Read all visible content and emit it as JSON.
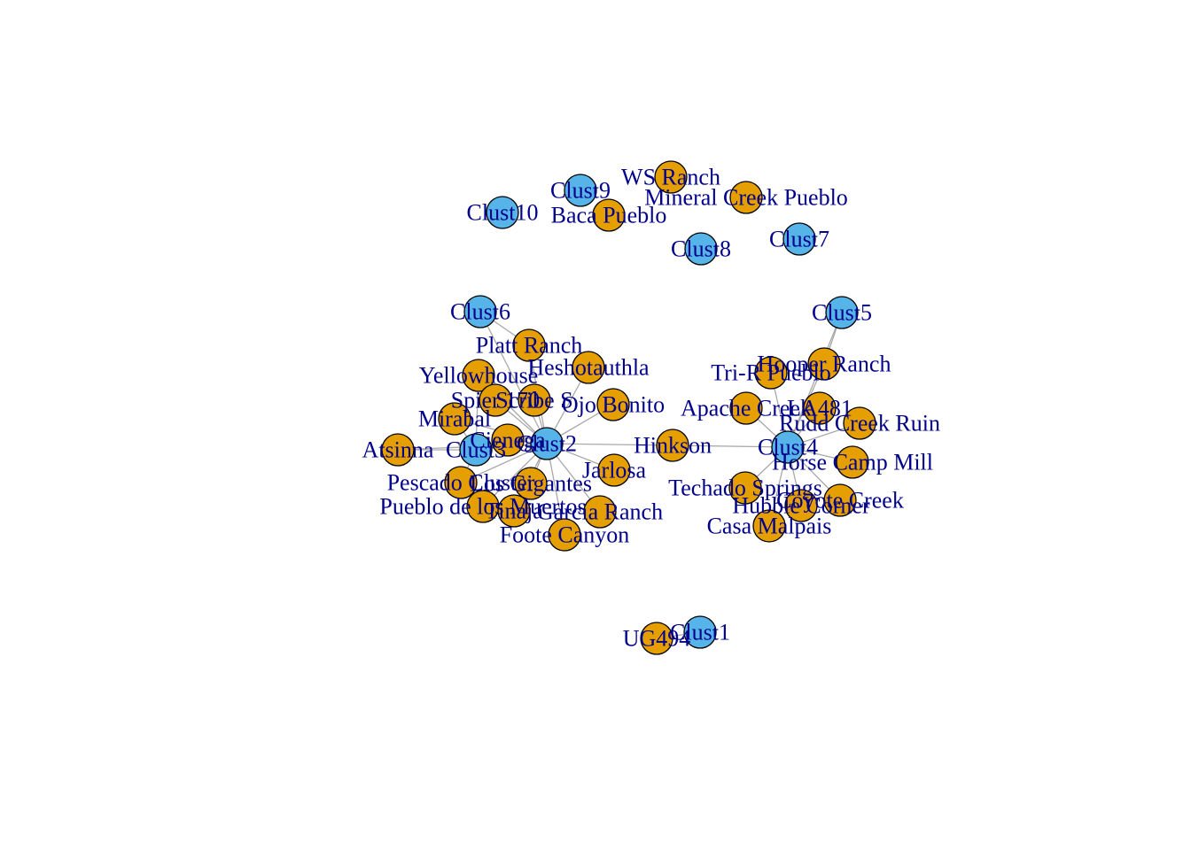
{
  "colors": {
    "cluster": "#56b4e9",
    "site": "#e69f00",
    "edge": "#a9a9a9",
    "label": "#00008b"
  },
  "nodes": [
    {
      "id": "wsranch",
      "label": "WS Ranch",
      "type": "site"
    },
    {
      "id": "clust9",
      "label": "Clust9",
      "type": "cluster"
    },
    {
      "id": "mineral",
      "label": "Mineral Creek Pueblo",
      "type": "site"
    },
    {
      "id": "clust10",
      "label": "Clust10",
      "type": "cluster"
    },
    {
      "id": "baca",
      "label": "Baca Pueblo",
      "type": "site"
    },
    {
      "id": "clust8",
      "label": "Clust8",
      "type": "cluster"
    },
    {
      "id": "clust7",
      "label": "Clust7",
      "type": "cluster"
    },
    {
      "id": "clust6",
      "label": "Clust6",
      "type": "cluster"
    },
    {
      "id": "clust5",
      "label": "Clust5",
      "type": "cluster"
    },
    {
      "id": "platt",
      "label": "Platt Ranch",
      "type": "site"
    },
    {
      "id": "heshot",
      "label": "Heshotauthla",
      "type": "site"
    },
    {
      "id": "hooper",
      "label": "Hooper Ranch",
      "type": "site"
    },
    {
      "id": "trir",
      "label": "Tri-R Pueblo",
      "type": "site"
    },
    {
      "id": "yellowhouse",
      "label": "Yellowhouse",
      "type": "site"
    },
    {
      "id": "spier",
      "label": "Spier 170",
      "type": "site"
    },
    {
      "id": "scribe",
      "label": "Scribe S",
      "type": "site"
    },
    {
      "id": "ojo",
      "label": "Ojo Bonito",
      "type": "site"
    },
    {
      "id": "apache",
      "label": "Apache Creek",
      "type": "site"
    },
    {
      "id": "la481",
      "label": "LA481",
      "type": "site"
    },
    {
      "id": "mirabal",
      "label": "Mirabal",
      "type": "site"
    },
    {
      "id": "rudd",
      "label": "Rudd Creek Ruin",
      "type": "site"
    },
    {
      "id": "cienega",
      "label": "Cienega",
      "type": "site"
    },
    {
      "id": "clust3",
      "label": "Clust3",
      "type": "cluster"
    },
    {
      "id": "clust2",
      "label": "Clust2",
      "type": "cluster"
    },
    {
      "id": "atsinna",
      "label": "Atsinna",
      "type": "site"
    },
    {
      "id": "hinkson",
      "label": "Hinkson",
      "type": "site"
    },
    {
      "id": "clust4",
      "label": "Clust4",
      "type": "cluster"
    },
    {
      "id": "horsecamp",
      "label": "Horse Camp Mill",
      "type": "site"
    },
    {
      "id": "jarlosa",
      "label": "Jarlosa",
      "type": "site"
    },
    {
      "id": "pescado",
      "label": "Pescado Cluster",
      "type": "site"
    },
    {
      "id": "losgig",
      "label": "Los Gigantes",
      "type": "site"
    },
    {
      "id": "techado",
      "label": "Techado Springs",
      "type": "site"
    },
    {
      "id": "coyote",
      "label": "Coyote Creek",
      "type": "site"
    },
    {
      "id": "hubbell",
      "label": "Hubble Corner",
      "type": "site"
    },
    {
      "id": "pueblomuertos",
      "label": "Pueblo de los Muertos",
      "type": "site"
    },
    {
      "id": "tinaja",
      "label": "Tinaja",
      "type": "site"
    },
    {
      "id": "garcia",
      "label": "Garcia Ranch",
      "type": "site"
    },
    {
      "id": "casamalpais",
      "label": "Casa Malpais",
      "type": "site"
    },
    {
      "id": "foote",
      "label": "Foote Canyon",
      "type": "site"
    },
    {
      "id": "ug494",
      "label": "UG494",
      "type": "site"
    },
    {
      "id": "clust1",
      "label": "Clust1",
      "type": "cluster"
    }
  ],
  "edges": [
    [
      "clust6",
      "platt"
    ],
    [
      "clust6",
      "clust2"
    ],
    [
      "clust2",
      "platt"
    ],
    [
      "clust2",
      "heshot"
    ],
    [
      "clust2",
      "yellowhouse"
    ],
    [
      "clust2",
      "spier"
    ],
    [
      "clust2",
      "scribe"
    ],
    [
      "clust2",
      "ojo"
    ],
    [
      "clust2",
      "mirabal"
    ],
    [
      "clust2",
      "cienega"
    ],
    [
      "clust2",
      "clust3"
    ],
    [
      "clust2",
      "atsinna"
    ],
    [
      "clust2",
      "hinkson"
    ],
    [
      "clust2",
      "jarlosa"
    ],
    [
      "clust2",
      "pescado"
    ],
    [
      "clust2",
      "losgig"
    ],
    [
      "clust2",
      "pueblomuertos"
    ],
    [
      "clust2",
      "tinaja"
    ],
    [
      "clust2",
      "garcia"
    ],
    [
      "clust2",
      "foote"
    ],
    [
      "clust3",
      "atsinna"
    ],
    [
      "clust3",
      "cienega"
    ],
    [
      "clust3",
      "mirabal"
    ],
    [
      "clust3",
      "pescado"
    ],
    [
      "clust3",
      "yellowhouse"
    ],
    [
      "hinkson",
      "clust4"
    ],
    [
      "clust5",
      "hooper"
    ],
    [
      "clust5",
      "clust4"
    ],
    [
      "clust4",
      "hooper"
    ],
    [
      "clust4",
      "trir"
    ],
    [
      "clust4",
      "apache"
    ],
    [
      "clust4",
      "la481"
    ],
    [
      "clust4",
      "rudd"
    ],
    [
      "clust4",
      "horsecamp"
    ],
    [
      "clust4",
      "techado"
    ],
    [
      "clust4",
      "coyote"
    ],
    [
      "clust4",
      "hubbell"
    ],
    [
      "clust4",
      "casamalpais"
    ],
    [
      "clust1",
      "ug494"
    ]
  ]
}
